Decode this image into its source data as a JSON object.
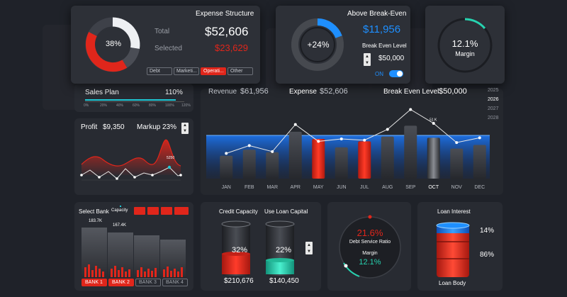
{
  "expense_structure": {
    "title": "Expense Structure",
    "donut_pct": "38%",
    "total_label": "Total",
    "total_value": "$52,606",
    "selected_label": "Selected",
    "selected_value": "$23,629",
    "tabs": [
      "Debt",
      "Marketi...",
      "Operati...",
      "Other"
    ],
    "active_tab": 2
  },
  "break_even": {
    "title": "Above Break-Even",
    "donut_pct": "+24%",
    "value": "$11,956",
    "level_label": "Break Even Level",
    "level_value": "$50,000",
    "toggle_label": "ON"
  },
  "margin": {
    "value": "12.1%",
    "label": "Margin"
  },
  "sales_plan": {
    "label": "Sales Plan",
    "value": "110%",
    "ticks": [
      "0%",
      "20%",
      "40%",
      "60%",
      "80%",
      "100%",
      "120%"
    ]
  },
  "summary": {
    "revenue_label": "Revenue",
    "revenue_value": "$61,956",
    "expense_label": "Expense",
    "expense_value": "$52,606",
    "bel_label": "Break Even Level",
    "bel_value": "$50,000"
  },
  "years": [
    "2025",
    "2026",
    "2027",
    "2028"
  ],
  "profit": {
    "label": "Profit",
    "value": "$9,350",
    "markup_label": "Markup",
    "markup_value": "23%",
    "point_label": "5250"
  },
  "bank": {
    "label": "Select Bank",
    "capacity_label": "Capacity",
    "bar_labels": [
      "183.7K",
      "167.4K"
    ],
    "buttons": [
      "BANK 1",
      "BANK 2",
      "BANK 3",
      "BANK 4"
    ]
  },
  "credit": {
    "capacity_label": "Credit Capacity",
    "loan_label": "Use Loan Capital",
    "barrel1_pct": "32%",
    "barrel2_pct": "22%",
    "barrel1_value": "$210,676",
    "barrel2_value": "$140,450"
  },
  "dsr": {
    "value": "21.6%",
    "label": "Debt Service Ratio",
    "margin_label": "Margin",
    "margin_value": "12.1%"
  },
  "loan_interest": {
    "label": "Loan Interest",
    "top_pct": "14%",
    "bottom_pct": "86%",
    "body_label": "Loan Body"
  },
  "colors": {
    "red": "#e0261b",
    "blue": "#1e8fff",
    "teal": "#27d3b0",
    "panel": "#282b32",
    "bg": "#1f2229"
  },
  "chart_data": {
    "type": "bar",
    "categories": [
      "JAN",
      "FEB",
      "MAR",
      "APR",
      "MAY",
      "JUN",
      "JUL",
      "AUG",
      "SEP",
      "OCT",
      "NOV",
      "DEC"
    ],
    "series": [
      {
        "values": [
          38,
          48,
          44,
          78,
          66,
          52,
          62,
          70,
          88,
          68,
          50,
          56
        ]
      },
      {
        "values": [
          42,
          55,
          45,
          90,
          62,
          66,
          64,
          82,
          115,
          92,
          60,
          68
        ]
      }
    ],
    "highlighted": [
      "MAY",
      "JUL"
    ],
    "selected": "OCT",
    "annotations": [
      "51 K"
    ],
    "ylim": [
      0,
      125
    ],
    "break_even_value": 72
  }
}
